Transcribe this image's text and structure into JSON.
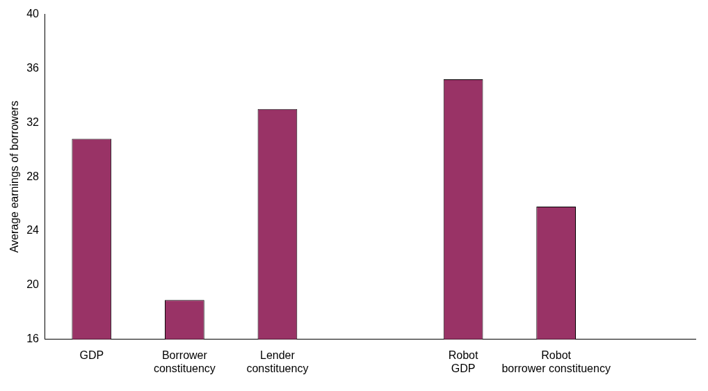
{
  "chart_data": {
    "type": "bar",
    "ylabel": "Average earnings of borrowers",
    "categories": [
      "GDP",
      "Borrower\nconstituency",
      "Lender\nconstituency",
      null,
      "Robot\nGDP",
      "Robot\nborrower constituency",
      null
    ],
    "values": [
      30.8,
      18.9,
      33.0,
      null,
      35.2,
      25.8,
      null
    ],
    "color": "#993366",
    "ylim": [
      16,
      40
    ],
    "yticks": [
      16,
      20,
      24,
      28,
      32,
      36,
      40
    ],
    "grid": false,
    "legend": false
  }
}
